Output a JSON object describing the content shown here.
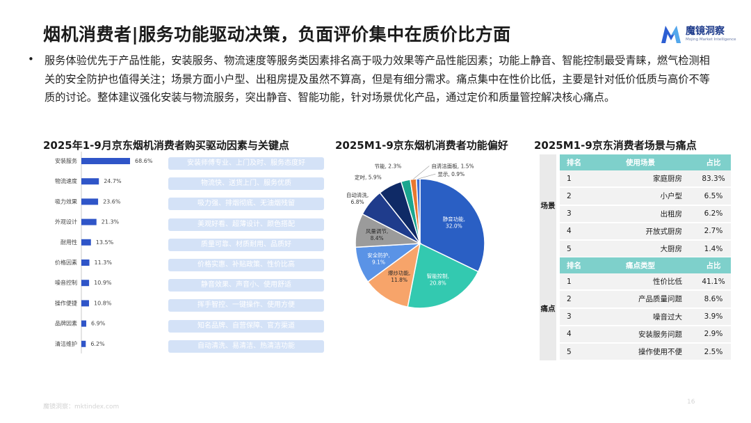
{
  "header": {
    "title": "烟机消费者|服务功能驱动决策，负面评价集中在质价比方面",
    "brand_cn": "魔镜洞察",
    "brand_en": "Mojing Market Intelligence"
  },
  "summary": {
    "bullet": "•",
    "text": "服务体验优先于产品性能，安装服务、物流速度等服务类因素排名高于吸力效果等产品性能因素；功能上静音、智能控制最受青睐，燃气检测相关的安全防护也值得关注；场景方面小户型、出租房提及虽然不算高，但是有细分需求。痛点集中在性价比低，主要是针对低价低质与高价不等质的讨论。整体建议强化安装与物流服务，突出静音、智能功能，针对场景优化产品，通过定价和质量管控解决核心痛点。"
  },
  "sections": {
    "left_title": "2025年1-9月京东烟机消费者购买驱动因素与关键点",
    "middle_title": "2025M1-9京东烟机消费者功能偏好",
    "right_title": "2025M1-9京东消费者场景与痛点"
  },
  "chart_data": [
    {
      "type": "bar",
      "orientation": "horizontal",
      "title": "2025年1-9月京东烟机消费者购买驱动因素与关键点",
      "categories": [
        "安装服务",
        "物流速度",
        "吸力效果",
        "外观设计",
        "耐用性",
        "价格因素",
        "噪音控制",
        "操作便捷",
        "品牌因素",
        "清洁维护"
      ],
      "values": [
        68.6,
        24.7,
        23.6,
        21.3,
        13.5,
        11.3,
        10.9,
        10.8,
        6.9,
        6.2
      ],
      "labels": [
        "68.6%",
        "24.7%",
        "23.6%",
        "21.3%",
        "13.5%",
        "11.3%",
        "10.9%",
        "10.8%",
        "6.9%",
        "6.2%"
      ],
      "key_points": [
        "安装师傅专业、上门及时、服务态度好",
        "物流快、送货上门、服务优质",
        "吸力强、排烟彻底、无油烟残留",
        "美观好看、超薄设计、颜色搭配",
        "质量可靠、材质耐用、品质好",
        "价格实惠、补贴政策、性价比高",
        "静音效果、声音小、使用舒适",
        "挥手智控、一键操作、使用方便",
        "知名品牌、自营保障、官方渠道",
        "自动清洗、易清洁、热清洁功能"
      ],
      "color": "#2f55c8",
      "key_point_color": "#d4e2f7"
    },
    {
      "type": "pie",
      "title": "2025M1-9京东烟机消费者功能偏好",
      "categories": [
        "静音功能",
        "智能控制",
        "爆炒功能",
        "安全防护",
        "风量调节",
        "自动清洗",
        "定时",
        "节能",
        "自清洁面板",
        "显示"
      ],
      "values": [
        32.0,
        20.8,
        11.8,
        9.1,
        8.4,
        6.8,
        5.9,
        2.3,
        1.5,
        0.9
      ],
      "labels": [
        "静音功能,",
        "智能控制,",
        "爆炒功能,",
        "安全防护,",
        "风量调节,",
        "自动清洗,",
        "定时, 5.9%",
        "节能, 2.3%",
        "自清洁面板, 1.5%",
        "显示, 0.9%"
      ],
      "value_labels": [
        "32.0%",
        "20.8%",
        "11.8%",
        "9.1%",
        "8.4%",
        "6.8%",
        "",
        "",
        "",
        ""
      ],
      "colors": [
        "#2a5fc4",
        "#33c9b0",
        "#f7a46a",
        "#5a93e6",
        "#9b9b9b",
        "#1f3c8c",
        "#0f2a66",
        "#1aa68f",
        "#e9782f",
        "#3d6fd6"
      ]
    },
    {
      "type": "table",
      "title": "2025M1-9京东消费者场景与痛点",
      "scene": {
        "side_label": "场景",
        "headers": [
          "排名",
          "使用场景",
          "占比"
        ],
        "rows": [
          [
            "1",
            "家庭厨房",
            "83.3%"
          ],
          [
            "2",
            "小户型",
            "6.5%"
          ],
          [
            "3",
            "出租房",
            "6.2%"
          ],
          [
            "4",
            "开放式厨房",
            "2.7%"
          ],
          [
            "5",
            "大厨房",
            "1.4%"
          ]
        ]
      },
      "pain": {
        "side_label": "痛点",
        "headers": [
          "排名",
          "痛点类型",
          "占比"
        ],
        "rows": [
          [
            "1",
            "性价比低",
            "41.1%"
          ],
          [
            "2",
            "产品质量问题",
            "8.6%"
          ],
          [
            "3",
            "噪音过大",
            "3.9%"
          ],
          [
            "4",
            "安装服务问题",
            "2.9%"
          ],
          [
            "5",
            "操作使用不便",
            "2.5%"
          ]
        ]
      },
      "header_color": "#7ed0cb"
    }
  ],
  "footer": {
    "source": "魔镜洞察：mktindex.com",
    "page": "16"
  }
}
